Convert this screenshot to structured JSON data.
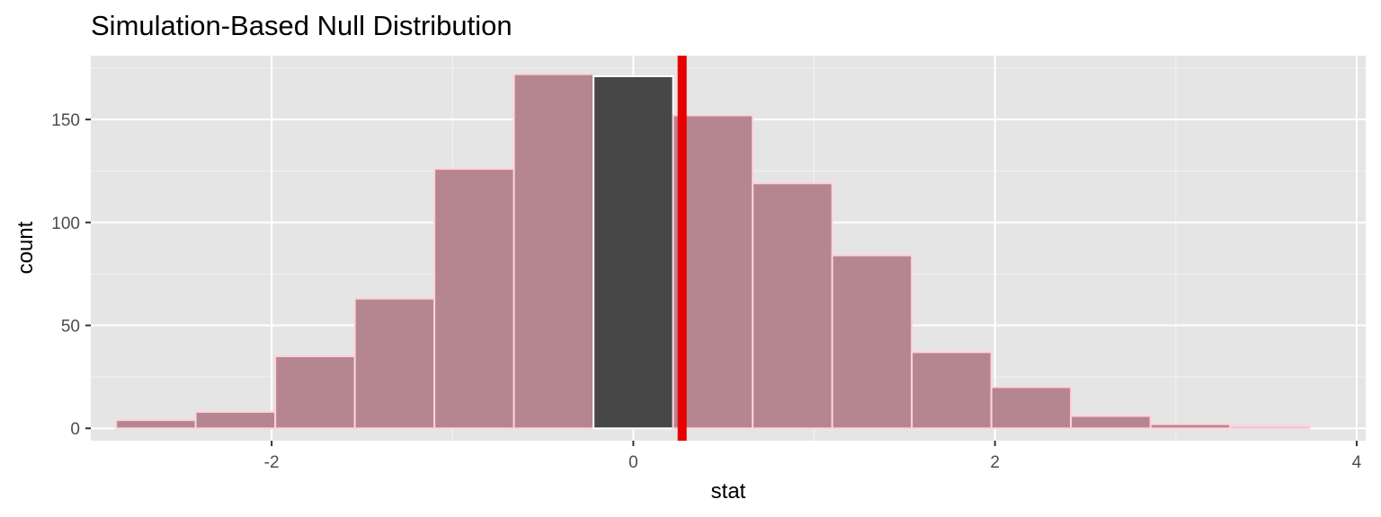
{
  "chart_data": {
    "type": "bar",
    "title": "Simulation-Based Null Distribution",
    "xlabel": "stat",
    "ylabel": "count",
    "xlim": [
      -3.0,
      4.05
    ],
    "ylim": [
      -6,
      181
    ],
    "x_ticks": [
      -2,
      0,
      2,
      4
    ],
    "x_tick_labels": [
      "-2",
      "0",
      "2",
      "4"
    ],
    "y_ticks": [
      0,
      50,
      100,
      150
    ],
    "y_tick_labels": [
      "0",
      "50",
      "100",
      "150"
    ],
    "grid": true,
    "bin_width": 0.44,
    "bins": [
      {
        "x_start": -2.86,
        "x_end": -2.42,
        "count": 4,
        "shaded": true
      },
      {
        "x_start": -2.42,
        "x_end": -1.98,
        "count": 8,
        "shaded": true
      },
      {
        "x_start": -1.98,
        "x_end": -1.54,
        "count": 35,
        "shaded": true
      },
      {
        "x_start": -1.54,
        "x_end": -1.1,
        "count": 63,
        "shaded": true
      },
      {
        "x_start": -1.1,
        "x_end": -0.66,
        "count": 126,
        "shaded": true
      },
      {
        "x_start": -0.66,
        "x_end": -0.22,
        "count": 172,
        "shaded": true
      },
      {
        "x_start": -0.22,
        "x_end": 0.22,
        "count": 171,
        "shaded": false
      },
      {
        "x_start": 0.22,
        "x_end": 0.66,
        "count": 152,
        "shaded": true
      },
      {
        "x_start": 0.66,
        "x_end": 1.1,
        "count": 119,
        "shaded": true
      },
      {
        "x_start": 1.1,
        "x_end": 1.54,
        "count": 84,
        "shaded": true
      },
      {
        "x_start": 1.54,
        "x_end": 1.98,
        "count": 37,
        "shaded": true
      },
      {
        "x_start": 1.98,
        "x_end": 2.42,
        "count": 20,
        "shaded": true
      },
      {
        "x_start": 2.42,
        "x_end": 2.86,
        "count": 6,
        "shaded": true
      },
      {
        "x_start": 2.86,
        "x_end": 3.3,
        "count": 2,
        "shaded": true
      },
      {
        "x_start": 3.3,
        "x_end": 3.74,
        "count": 1,
        "shaded": true
      }
    ],
    "observed_stat": 0.27,
    "colors": {
      "panel_background": "#e5e5e5",
      "grid_major": "#ffffff",
      "grid_minor": "#f2f2f2",
      "bar_fill": "#474747",
      "bar_outline": "#ffffff",
      "shade_fill": "#b5868f",
      "shade_outline": "#ffd1dc",
      "observed_line": "#e60000"
    }
  }
}
